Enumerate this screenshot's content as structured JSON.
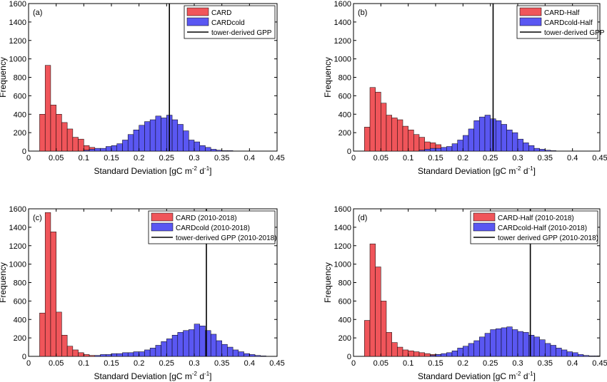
{
  "colors": {
    "series1": "#f0555a",
    "series2": "#5a57f2",
    "tower": "#000000",
    "axis": "#000000"
  },
  "chart_data": [
    {
      "type": "histogram",
      "panel_label": "(a)",
      "xlabel": {
        "main": "Standard Deviation [gC m",
        "exp1": "-2",
        "mid": " d",
        "exp2": "-1",
        "end": "]"
      },
      "ylabel": "Frequency",
      "xlim": [
        0,
        0.45
      ],
      "ylim": [
        0,
        1600
      ],
      "xticks": [
        "0",
        "0.05",
        "0.1",
        "0.15",
        "0.2",
        "0.25",
        "0.3",
        "0.35",
        "0.4",
        "0.45"
      ],
      "yticks": [
        "0",
        "200",
        "400",
        "600",
        "800",
        "1000",
        "1200",
        "1400",
        "1600"
      ],
      "bin_width": 0.01,
      "series": [
        {
          "name": "CARD",
          "bin_start": 0.02,
          "values": [
            400,
            930,
            500,
            400,
            310,
            240,
            150,
            130,
            60,
            40,
            20,
            10,
            10,
            0,
            0,
            0,
            0,
            0,
            0,
            0
          ]
        },
        {
          "name": "CARDcold",
          "bin_start": 0.1,
          "values": [
            10,
            20,
            30,
            30,
            50,
            60,
            80,
            120,
            180,
            230,
            280,
            320,
            340,
            380,
            360,
            390,
            340,
            290,
            220,
            120,
            100,
            60,
            40,
            20,
            10,
            5,
            5,
            0,
            0,
            0
          ]
        }
      ],
      "tower": {
        "name": "tower-derived GPP",
        "value": 0.255
      },
      "legend_loc": "top-right"
    },
    {
      "type": "histogram",
      "panel_label": "(b)",
      "xlabel": {
        "main": "Standard Deviation [gC m",
        "exp1": "-2",
        "mid": " d",
        "exp2": "-1",
        "end": "]"
      },
      "ylabel": "Frequency",
      "xlim": [
        0,
        0.45
      ],
      "ylim": [
        0,
        1600
      ],
      "xticks": [
        "0",
        "0.05",
        "0.1",
        "0.15",
        "0.2",
        "0.25",
        "0.3",
        "0.35",
        "0.4",
        "0.45"
      ],
      "yticks": [
        "0",
        "200",
        "400",
        "600",
        "800",
        "1000",
        "1200",
        "1400",
        "1600"
      ],
      "bin_width": 0.01,
      "series": [
        {
          "name": "CARD-Half",
          "bin_start": 0.02,
          "values": [
            260,
            690,
            640,
            520,
            390,
            360,
            340,
            270,
            230,
            180,
            150,
            100,
            90,
            70,
            30,
            20,
            10,
            5,
            0,
            0
          ]
        },
        {
          "name": "CARDcold-Half",
          "bin_start": 0.12,
          "values": [
            10,
            20,
            30,
            30,
            40,
            50,
            80,
            120,
            170,
            240,
            330,
            370,
            390,
            350,
            330,
            290,
            230,
            200,
            130,
            90,
            60,
            30,
            20,
            10,
            5
          ]
        }
      ],
      "tower": {
        "name": "tower-derived GPP",
        "value": 0.255
      },
      "legend_loc": "top-right"
    },
    {
      "type": "histogram",
      "panel_label": "(c)",
      "xlabel": {
        "main": "Standard Deviation [gC m",
        "exp1": "-2",
        "mid": " d",
        "exp2": "-1",
        "end": "]"
      },
      "ylabel": "Frequency",
      "xlim": [
        0,
        0.45
      ],
      "ylim": [
        0,
        1600
      ],
      "xticks": [
        "0",
        "0.05",
        "0.1",
        "0.15",
        "0.2",
        "0.25",
        "0.3",
        "0.35",
        "0.4",
        "0.45"
      ],
      "yticks": [
        "0",
        "200",
        "400",
        "600",
        "800",
        "1000",
        "1200",
        "1400",
        "1600"
      ],
      "bin_width": 0.01,
      "series": [
        {
          "name": "CARD (2010-2018)",
          "bin_start": 0.02,
          "values": [
            470,
            1560,
            1350,
            480,
            230,
            110,
            70,
            40,
            20,
            10,
            5,
            0,
            0,
            0
          ]
        },
        {
          "name": "CARDcold (2010-2018)",
          "bin_start": 0.12,
          "values": [
            10,
            20,
            20,
            30,
            30,
            40,
            40,
            50,
            50,
            70,
            90,
            120,
            160,
            190,
            230,
            260,
            280,
            290,
            350,
            330,
            280,
            240,
            170,
            130,
            100,
            70,
            50,
            30,
            20,
            10,
            5
          ]
        }
      ],
      "tower": {
        "name": "tower-derived GPP (2010-2018)",
        "value": 0.322
      },
      "legend_loc": "top-right"
    },
    {
      "type": "histogram",
      "panel_label": "(d)",
      "xlabel": {
        "main": "Standard Deviation [gC m",
        "exp1": "-2",
        "mid": " d",
        "exp2": "-1",
        "end": "]"
      },
      "ylabel": "Frequency",
      "xlim": [
        0,
        0.45
      ],
      "ylim": [
        0,
        1600
      ],
      "xticks": [
        "0",
        "0.05",
        "0.1",
        "0.15",
        "0.2",
        "0.25",
        "0.3",
        "0.35",
        "0.4",
        "0.45"
      ],
      "yticks": [
        "0",
        "200",
        "400",
        "600",
        "800",
        "1000",
        "1200",
        "1400",
        "1600"
      ],
      "bin_width": 0.01,
      "series": [
        {
          "name": "CARD-Half (2010-2018)",
          "bin_start": 0.02,
          "values": [
            390,
            1220,
            970,
            600,
            260,
            150,
            100,
            70,
            60,
            50,
            40,
            30,
            20,
            20,
            10,
            5,
            5,
            0
          ]
        },
        {
          "name": "CARDcold-Half (2010-2018)",
          "bin_start": 0.14,
          "values": [
            10,
            20,
            30,
            40,
            60,
            90,
            110,
            140,
            170,
            210,
            250,
            290,
            300,
            310,
            320,
            290,
            270,
            260,
            230,
            210,
            180,
            140,
            120,
            90,
            70,
            50,
            40,
            20,
            10,
            5,
            5
          ]
        }
      ],
      "tower": {
        "name": "tower derived GPP (2010-2018)",
        "value": 0.323
      },
      "legend_loc": "top-right"
    }
  ]
}
